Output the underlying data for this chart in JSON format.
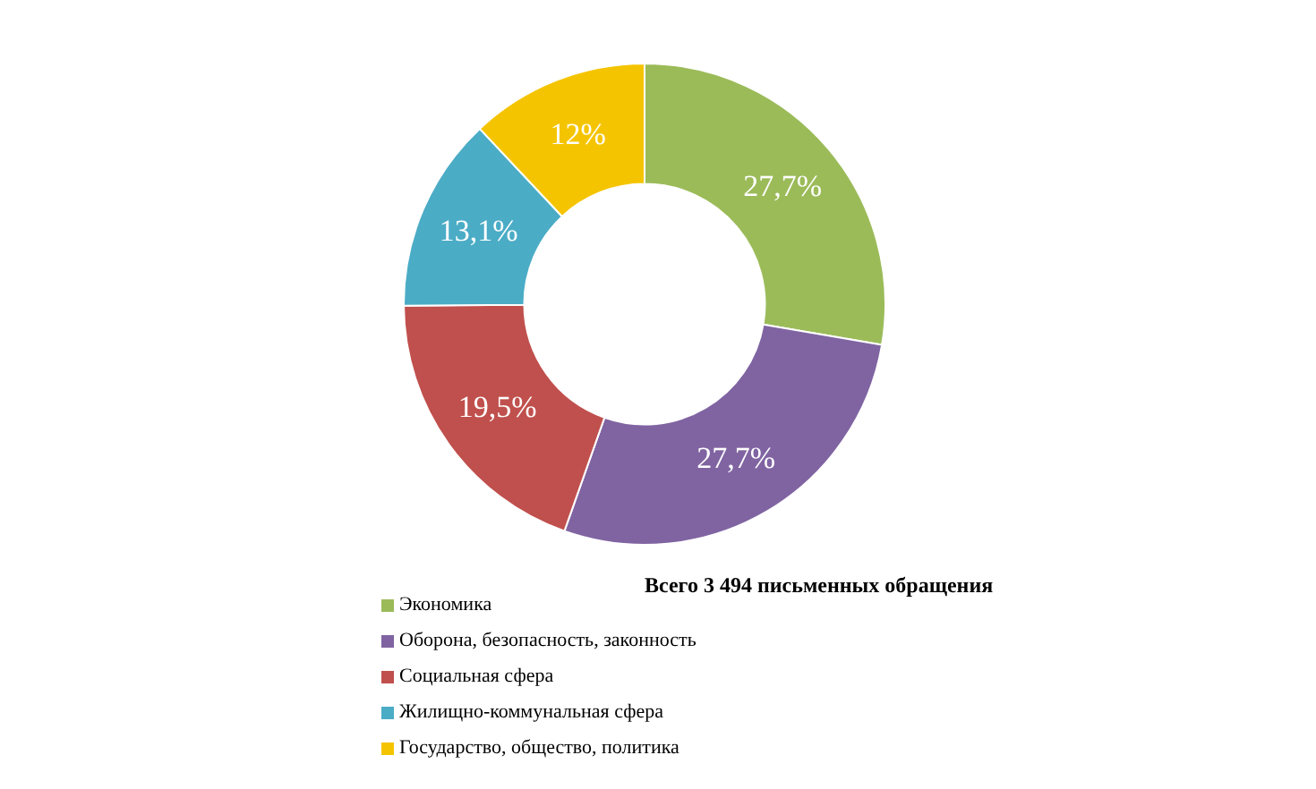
{
  "chart_data": {
    "type": "donut",
    "categories": [
      "Экономика",
      "Оборона, безопасность, законность",
      "Социальная сфера",
      "Жилищно-коммунальная сфера",
      "Государство, общество, политика"
    ],
    "values": [
      27.7,
      27.7,
      19.5,
      13.1,
      12
    ],
    "value_labels": [
      "27,7%",
      "27,7%",
      "19,5%",
      "13,1%",
      "12%"
    ],
    "colors": [
      "#9bbb59",
      "#8064a2",
      "#c0504d",
      "#4bacc6",
      "#f5c400"
    ],
    "annotations": [
      "Всего 3 494 письменных обращения"
    ],
    "legend": "bottom left"
  }
}
